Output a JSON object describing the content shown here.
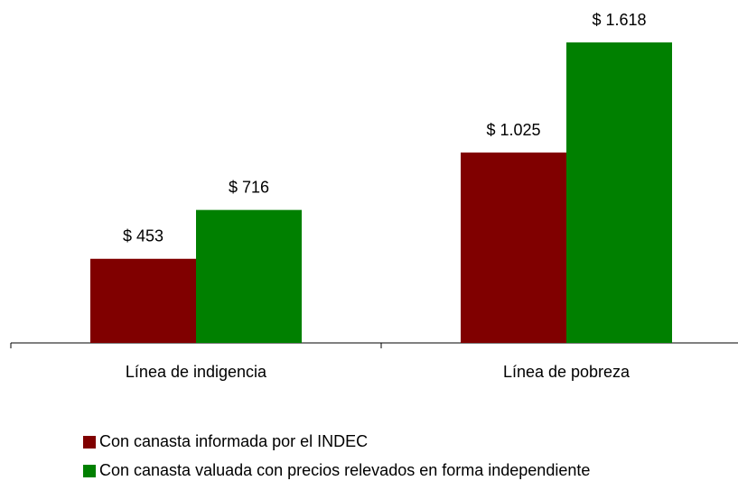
{
  "chart_data": {
    "type": "bar",
    "categories": [
      "Línea de indigencia",
      "Línea de pobreza"
    ],
    "series": [
      {
        "name": "Con canasta informada por el INDEC",
        "color": "#800000",
        "values": [
          453,
          1025
        ],
        "value_labels": [
          "$ 453",
          "$ 1.025"
        ]
      },
      {
        "name": "Con canasta valuada con precios relevados en forma independiente",
        "color": "#008000",
        "values": [
          716,
          1618
        ],
        "value_labels": [
          "$ 716",
          "$ 1.618"
        ]
      }
    ],
    "legend": "bottom"
  }
}
